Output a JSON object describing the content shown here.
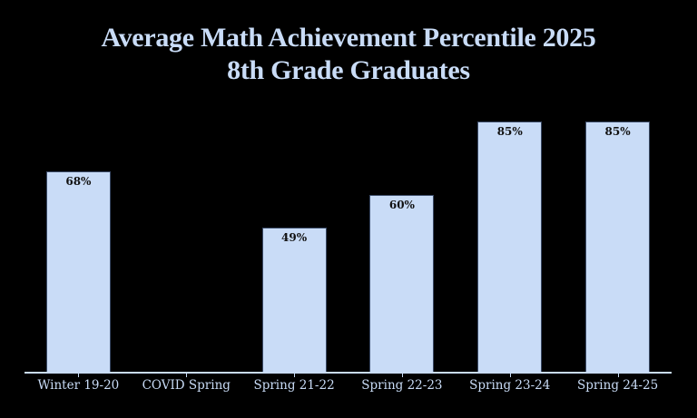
{
  "chart_data": {
    "type": "bar",
    "title": "Average Math Achievement Percentile 2025",
    "subtitle": "8th Grade Graduates",
    "title_lines": [
      "Average Math Achievement Percentile 2025",
      "8th Grade Graduates"
    ],
    "categories": [
      "Winter 19-20",
      "COVID Spring",
      "Spring 21-22",
      "Spring 22-23",
      "Spring 23-24",
      "Spring 24-25"
    ],
    "values": [
      68,
      null,
      49,
      60,
      85,
      85
    ],
    "data_labels": [
      "68%",
      "",
      "49%",
      "60%",
      "85%",
      "85%"
    ],
    "xlabel": "",
    "ylabel": "",
    "ylim": [
      0,
      95
    ],
    "y_axis_visible": false,
    "grid": false,
    "legend": null,
    "colors": {
      "background": "#000000",
      "bar": "#c9dcf7",
      "text": "#c9dcf7",
      "label_text": "#111111"
    }
  }
}
